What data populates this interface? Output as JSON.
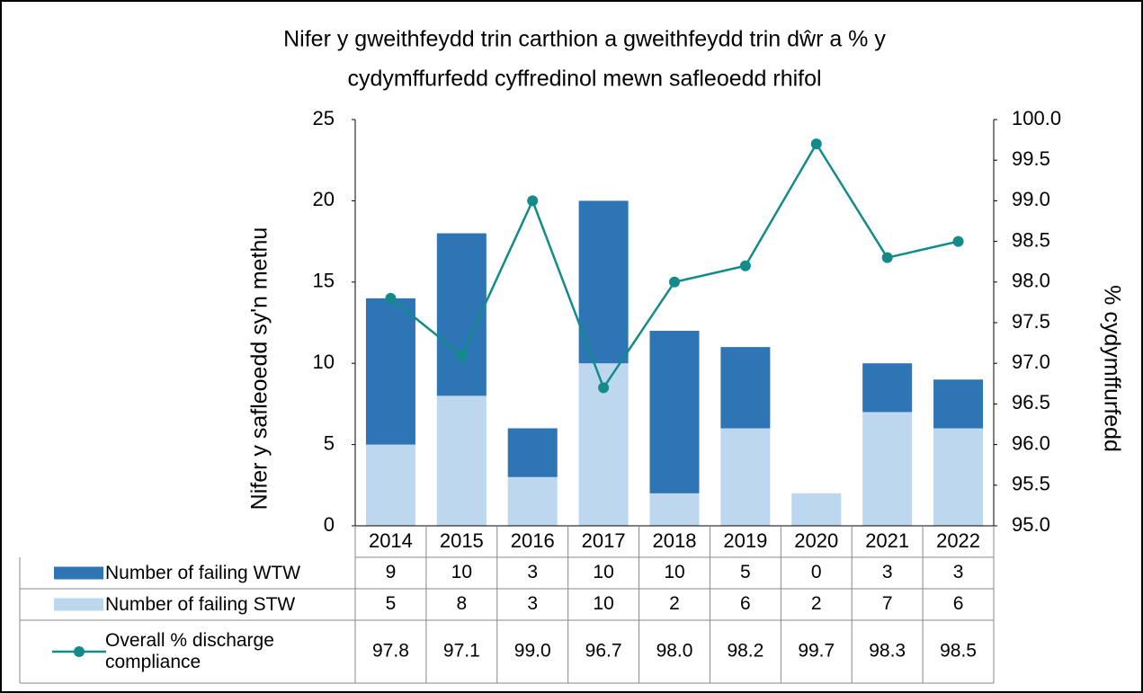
{
  "chart_data": {
    "type": "bar-line-table",
    "title": [
      "Nifer y gweithfeydd trin carthion a gweithfeydd trin dŵr a % y",
      "cydymffurfedd cyffredinol mewn safleoedd rhifol"
    ],
    "y_label": "Nifer y safleoedd sy'n methu",
    "y2_label": "% cydymffurfedd",
    "categories": [
      "2014",
      "2015",
      "2016",
      "2017",
      "2018",
      "2019",
      "2020",
      "2021",
      "2022"
    ],
    "series": [
      {
        "name": "Number of failing WTW",
        "color": "#2e75b6",
        "values": [
          9,
          10,
          3,
          10,
          10,
          5,
          0,
          3,
          3
        ]
      },
      {
        "name": "Number of failing STW",
        "color": "#bdd7ee",
        "values": [
          5,
          8,
          3,
          10,
          2,
          6,
          2,
          7,
          6
        ]
      },
      {
        "name": "Overall % discharge compliance",
        "color": "#138b8b",
        "axis": "y2",
        "values": [
          97.8,
          97.1,
          99.0,
          96.7,
          98.0,
          98.2,
          99.7,
          98.3,
          98.5
        ],
        "value_labels": [
          "97.8",
          "97.1",
          "99.0",
          "96.7",
          "98.0",
          "98.2",
          "99.7",
          "98.3",
          "98.5"
        ]
      }
    ],
    "ylim": [
      0,
      25
    ],
    "yticks": [
      0,
      5,
      10,
      15,
      20,
      25
    ],
    "y2lim": [
      95,
      100
    ],
    "y2ticks": [
      {
        "value": 95,
        "label": "95.0"
      },
      95.5,
      {
        "value": 96,
        "label": "96.0"
      },
      96.5,
      {
        "value": 97,
        "label": "97.0"
      },
      97.5,
      {
        "value": 98,
        "label": "98.0"
      },
      98.5,
      {
        "value": 99,
        "label": "99.0"
      },
      99.5,
      {
        "value": 100,
        "label": "100.0"
      }
    ]
  }
}
